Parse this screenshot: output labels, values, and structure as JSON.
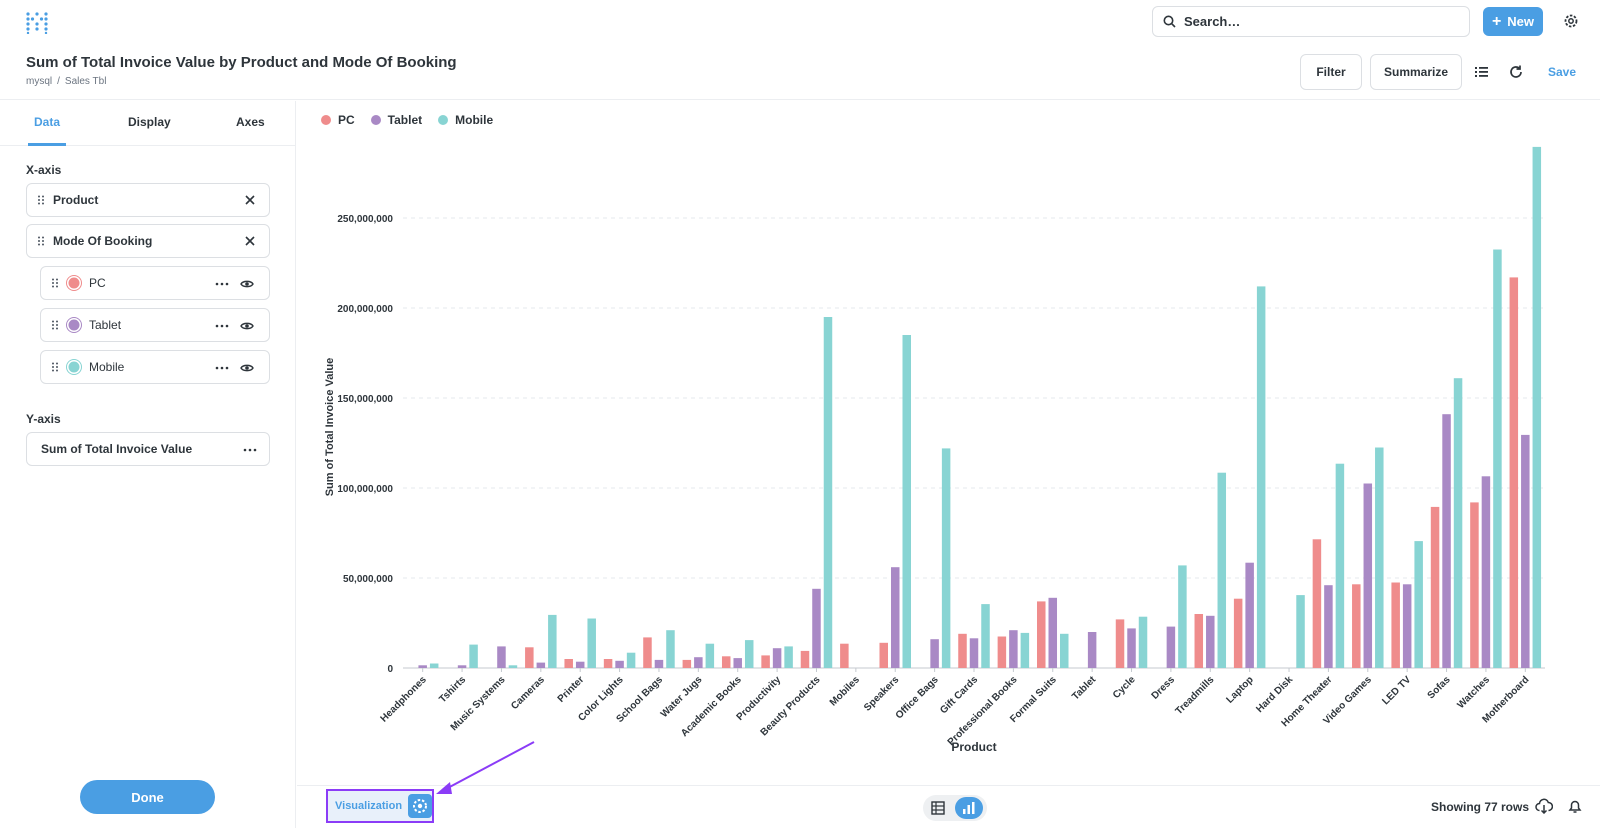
{
  "header": {
    "search_placeholder": "Search…",
    "new_label": "New",
    "title": "Sum of Total Invoice Value by Product and Mode Of Booking",
    "breadcrumb": [
      "mysql",
      "/",
      "Sales Tbl"
    ],
    "filter_label": "Filter",
    "summarize_label": "Summarize",
    "save_label": "Save"
  },
  "sidebar": {
    "tabs": [
      "Data",
      "Display",
      "Axes"
    ],
    "active_tab": "Data",
    "x_axis_label": "X-axis",
    "x_fields": [
      "Product",
      "Mode Of Booking"
    ],
    "series": [
      {
        "name": "PC",
        "color": "#ef8c8c"
      },
      {
        "name": "Tablet",
        "color": "#a989c5"
      },
      {
        "name": "Mobile",
        "color": "#88d4d3"
      }
    ],
    "y_axis_label": "Y-axis",
    "y_field": "Sum of Total Invoice Value",
    "done_label": "Done"
  },
  "footer": {
    "visualization_label": "Visualization",
    "rows_label": "Showing 77 rows"
  },
  "chart_data": {
    "type": "bar",
    "xlabel": "Product",
    "ylabel": "Sum of Total Invoice Value",
    "ylim": [
      0,
      290000000
    ],
    "yticks": [
      "0",
      "50,000,000",
      "100,000,000",
      "150,000,000",
      "200,000,000",
      "250,000,000"
    ],
    "ytick_values": [
      0,
      50000000,
      100000000,
      150000000,
      200000000,
      250000000
    ],
    "legend_position": "top-left",
    "categories": [
      "Headphones",
      "Tshirts",
      "Music Systems",
      "Cameras",
      "Printer",
      "Color Lights",
      "School Bags",
      "Water Jugs",
      "Academic Books",
      "Productivity",
      "Beauty Products",
      "Mobiles",
      "Speakers",
      "Office Bags",
      "Gift Cards",
      "Professional Books",
      "Formal Suits",
      "Tablet",
      "Cycle",
      "Dress",
      "Treadmills",
      "Laptop",
      "Hard Disk",
      "Home Theater",
      "Video Games",
      "LED TV",
      "Sofas",
      "Watches",
      "Motherboard"
    ],
    "series": [
      {
        "name": "PC",
        "color": "#ef8c8c",
        "values": [
          0,
          0,
          0,
          11500000,
          5000000,
          5000000,
          17000000,
          4500000,
          6500000,
          7000000,
          9500000,
          13500000,
          14000000,
          0,
          19000000,
          17500000,
          37000000,
          0,
          27000000,
          0,
          30000000,
          38500000,
          0,
          71500000,
          46500000,
          47500000,
          89500000,
          92000000,
          217000000
        ]
      },
      {
        "name": "Tablet",
        "color": "#a989c5",
        "values": [
          1500000,
          1500000,
          12000000,
          3000000,
          3500000,
          4000000,
          4500000,
          6000000,
          5500000,
          11000000,
          44000000,
          0,
          56000000,
          16000000,
          16500000,
          21000000,
          39000000,
          20000000,
          22000000,
          23000000,
          29000000,
          58500000,
          0,
          46000000,
          102500000,
          46500000,
          141000000,
          106500000,
          129500000
        ]
      },
      {
        "name": "Mobile",
        "color": "#88d4d3",
        "values": [
          2500000,
          13000000,
          1500000,
          29500000,
          27500000,
          8500000,
          21000000,
          13500000,
          15500000,
          12000000,
          195000000,
          0,
          185000000,
          122000000,
          35500000,
          19500000,
          19000000,
          0,
          28500000,
          57000000,
          108500000,
          212000000,
          40500000,
          113500000,
          122500000,
          70500000,
          161000000,
          232500000,
          289500000
        ]
      }
    ]
  }
}
